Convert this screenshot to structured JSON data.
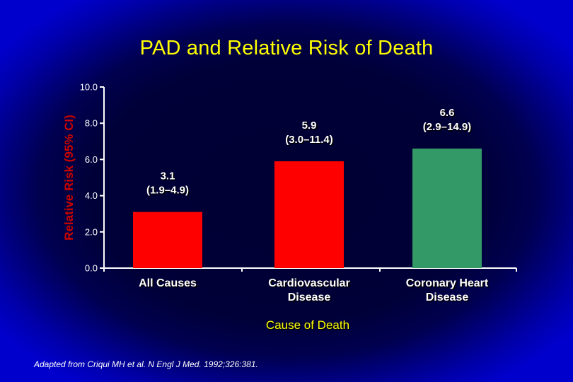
{
  "slide": {
    "title": "PAD and Relative Risk of Death",
    "source": "Adapted from Criqui MH et al. N Engl J Med. 1992;326:381."
  },
  "chart_data": {
    "type": "bar",
    "title": "PAD and Relative Risk of Death",
    "ylabel": "Relative Risk (95% CI)",
    "xlabel": "Cause of Death",
    "ylim": [
      0,
      10
    ],
    "yticks": [
      "0.0",
      "2.0",
      "4.0",
      "6.0",
      "8.0",
      "10.0"
    ],
    "grid": false,
    "categories": [
      {
        "lines": [
          "All Causes"
        ]
      },
      {
        "lines": [
          "Cardiovascular",
          "Disease"
        ]
      },
      {
        "lines": [
          "Coronary Heart",
          "Disease"
        ]
      }
    ],
    "values": [
      3.1,
      5.9,
      6.6
    ],
    "data_labels": [
      {
        "value": "3.1",
        "ci": "(1.9–4.9)"
      },
      {
        "value": "5.9",
        "ci": "(3.0–11.4)"
      },
      {
        "value": "6.6",
        "ci": "(2.9–14.9)"
      }
    ],
    "colors": [
      "#ff0000",
      "#ff0000",
      "#339966"
    ],
    "axis_color": "#ffffff"
  }
}
